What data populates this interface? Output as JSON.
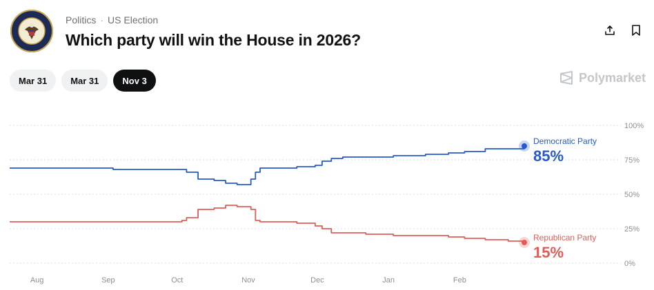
{
  "header": {
    "breadcrumbs": [
      "Politics",
      "US Election"
    ],
    "title": "Which party will win the House in 2026?",
    "logo_text": "U.S. HOUSE OF REPRESENTATIVES"
  },
  "actions": {
    "share_icon": "share-icon",
    "bookmark_icon": "bookmark-icon"
  },
  "date_tabs": [
    {
      "label": "Mar 31",
      "active": false
    },
    {
      "label": "Mar 31",
      "active": false
    },
    {
      "label": "Nov 3",
      "active": true
    }
  ],
  "brand": {
    "name": "Polymarket",
    "icon": "polymarket-logo-icon"
  },
  "colors": {
    "democratic": "#2659c9",
    "republican": "#e25c56",
    "grid": "#d9dce0"
  },
  "chart_data": {
    "type": "line",
    "x_axis_labels": [
      "Aug",
      "Sep",
      "Oct",
      "Nov",
      "Dec",
      "Jan",
      "Feb"
    ],
    "y_ticks": [
      "100%",
      "75%",
      "50%",
      "25%",
      "0%"
    ],
    "ylim": [
      0,
      100
    ],
    "grid": true,
    "x": [
      "Jul 18",
      "Aug 1",
      "Aug 15",
      "Sep 1",
      "Sep 15",
      "Sep 28",
      "Oct 1",
      "Oct 3",
      "Oct 8",
      "Oct 15",
      "Oct 20",
      "Oct 25",
      "Oct 31",
      "Nov 2",
      "Nov 4",
      "Nov 10",
      "Nov 20",
      "Nov 28",
      "Dec 1",
      "Dec 5",
      "Dec 10",
      "Dec 20",
      "Jan 1",
      "Jan 5",
      "Jan 15",
      "Jan 25",
      "Feb 1",
      "Feb 10",
      "Feb 20",
      "Feb 27"
    ],
    "series": [
      {
        "name": "Democratic Party",
        "current_label": "85%",
        "values": [
          69,
          69,
          69,
          68,
          68,
          68,
          68,
          66,
          61,
          60,
          58,
          57,
          61,
          66,
          69,
          69,
          70,
          71,
          74,
          76,
          77,
          77,
          78,
          78,
          79,
          80,
          81,
          83,
          83,
          85
        ]
      },
      {
        "name": "Republican Party",
        "current_label": "15%",
        "values": [
          30,
          30,
          30,
          30,
          30,
          30,
          31,
          33,
          39,
          40,
          42,
          41,
          39,
          31,
          30,
          30,
          29,
          27,
          25,
          22,
          22,
          21,
          20,
          20,
          20,
          19,
          18,
          17,
          16,
          15
        ]
      }
    ]
  }
}
